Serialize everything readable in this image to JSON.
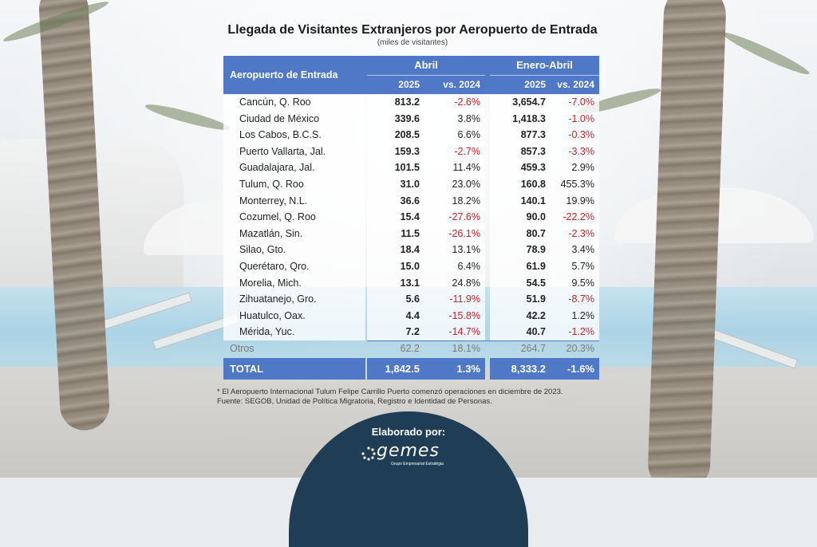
{
  "title": "Llegada de Visitantes Extranjeros por Aeropuerto de Entrada",
  "subtitle": "(miles de visitantes)",
  "table": {
    "corner_label": "Aeropuerto de Entrada",
    "groups": [
      "Abril",
      "Enero-Abril"
    ],
    "subheaders": [
      "2025",
      "vs. 2024",
      "2025",
      "vs. 2024"
    ],
    "rows": [
      {
        "name": "Cancún, Q. Roo",
        "v1": "813.2",
        "p1": "-2.6%",
        "v2": "3,654.7",
        "p2": "-7.0%"
      },
      {
        "name": "Ciudad de México",
        "v1": "339.6",
        "p1": "3.8%",
        "v2": "1,418.3",
        "p2": "-1.0%"
      },
      {
        "name": "Los Cabos, B.C.S.",
        "v1": "208.5",
        "p1": "6.6%",
        "v2": "877.3",
        "p2": "-0.3%"
      },
      {
        "name": "Puerto Vallarta, Jal.",
        "v1": "159.3",
        "p1": "-2.7%",
        "v2": "857.3",
        "p2": "-3.3%"
      },
      {
        "name": "Guadalajara, Jal.",
        "v1": "101.5",
        "p1": "11.4%",
        "v2": "459.3",
        "p2": "2.9%"
      },
      {
        "name": "Tulum, Q. Roo",
        "v1": "31.0",
        "p1": "23.0%",
        "v2": "160.8",
        "p2": "455.3%"
      },
      {
        "name": "Monterrey, N.L.",
        "v1": "36.6",
        "p1": "18.2%",
        "v2": "140.1",
        "p2": "19.9%"
      },
      {
        "name": "Cozumel, Q. Roo",
        "v1": "15.4",
        "p1": "-27.6%",
        "v2": "90.0",
        "p2": "-22.2%"
      },
      {
        "name": "Mazatlán, Sin.",
        "v1": "11.5",
        "p1": "-26.1%",
        "v2": "80.7",
        "p2": "-2.3%"
      },
      {
        "name": "Silao, Gto.",
        "v1": "18.4",
        "p1": "13.1%",
        "v2": "78.9",
        "p2": "3.4%"
      },
      {
        "name": "Querétaro, Qro.",
        "v1": "15.0",
        "p1": "6.4%",
        "v2": "61.9",
        "p2": "5.7%"
      },
      {
        "name": "Morelia, Mich.",
        "v1": "13.1",
        "p1": "24.8%",
        "v2": "54.5",
        "p2": "9.5%"
      },
      {
        "name": "Zihuatanejo, Gro.",
        "v1": "5.6",
        "p1": "-11.9%",
        "v2": "51.9",
        "p2": "-8.7%"
      },
      {
        "name": "Huatulco, Oax.",
        "v1": "4.4",
        "p1": "-15.8%",
        "v2": "42.2",
        "p2": "1.2%"
      },
      {
        "name": "Mérida, Yuc.",
        "v1": "7.2",
        "p1": "-14.7%",
        "v2": "40.7",
        "p2": "-1.2%"
      }
    ],
    "others": {
      "name": "Otros",
      "v1": "62.2",
      "p1": "18.1%",
      "v2": "264.7",
      "p2": "20.3%"
    },
    "total": {
      "name": "TOTAL",
      "v1": "1,842.5",
      "p1": "1.3%",
      "v2": "8,333.2",
      "p2": "-1.6%"
    }
  },
  "notes": {
    "footnote": "* El Aeropuerto Internacional Tulum Felipe Carrillo Puerto comenzó operaciones en diciembre de 2023.",
    "source": "Fuente: SEGOB, Unidad de Política Migratoria, Registro e Identidad de Personas."
  },
  "footer": {
    "label": "Elaborado por:",
    "logo_text": "gemes",
    "logo_tagline": "Grupo Empresarial Estratégia"
  },
  "colors": {
    "header_blue": "#4f79c6",
    "negative_red": "#c0242c",
    "badge_navy": "#1f3e56"
  }
}
